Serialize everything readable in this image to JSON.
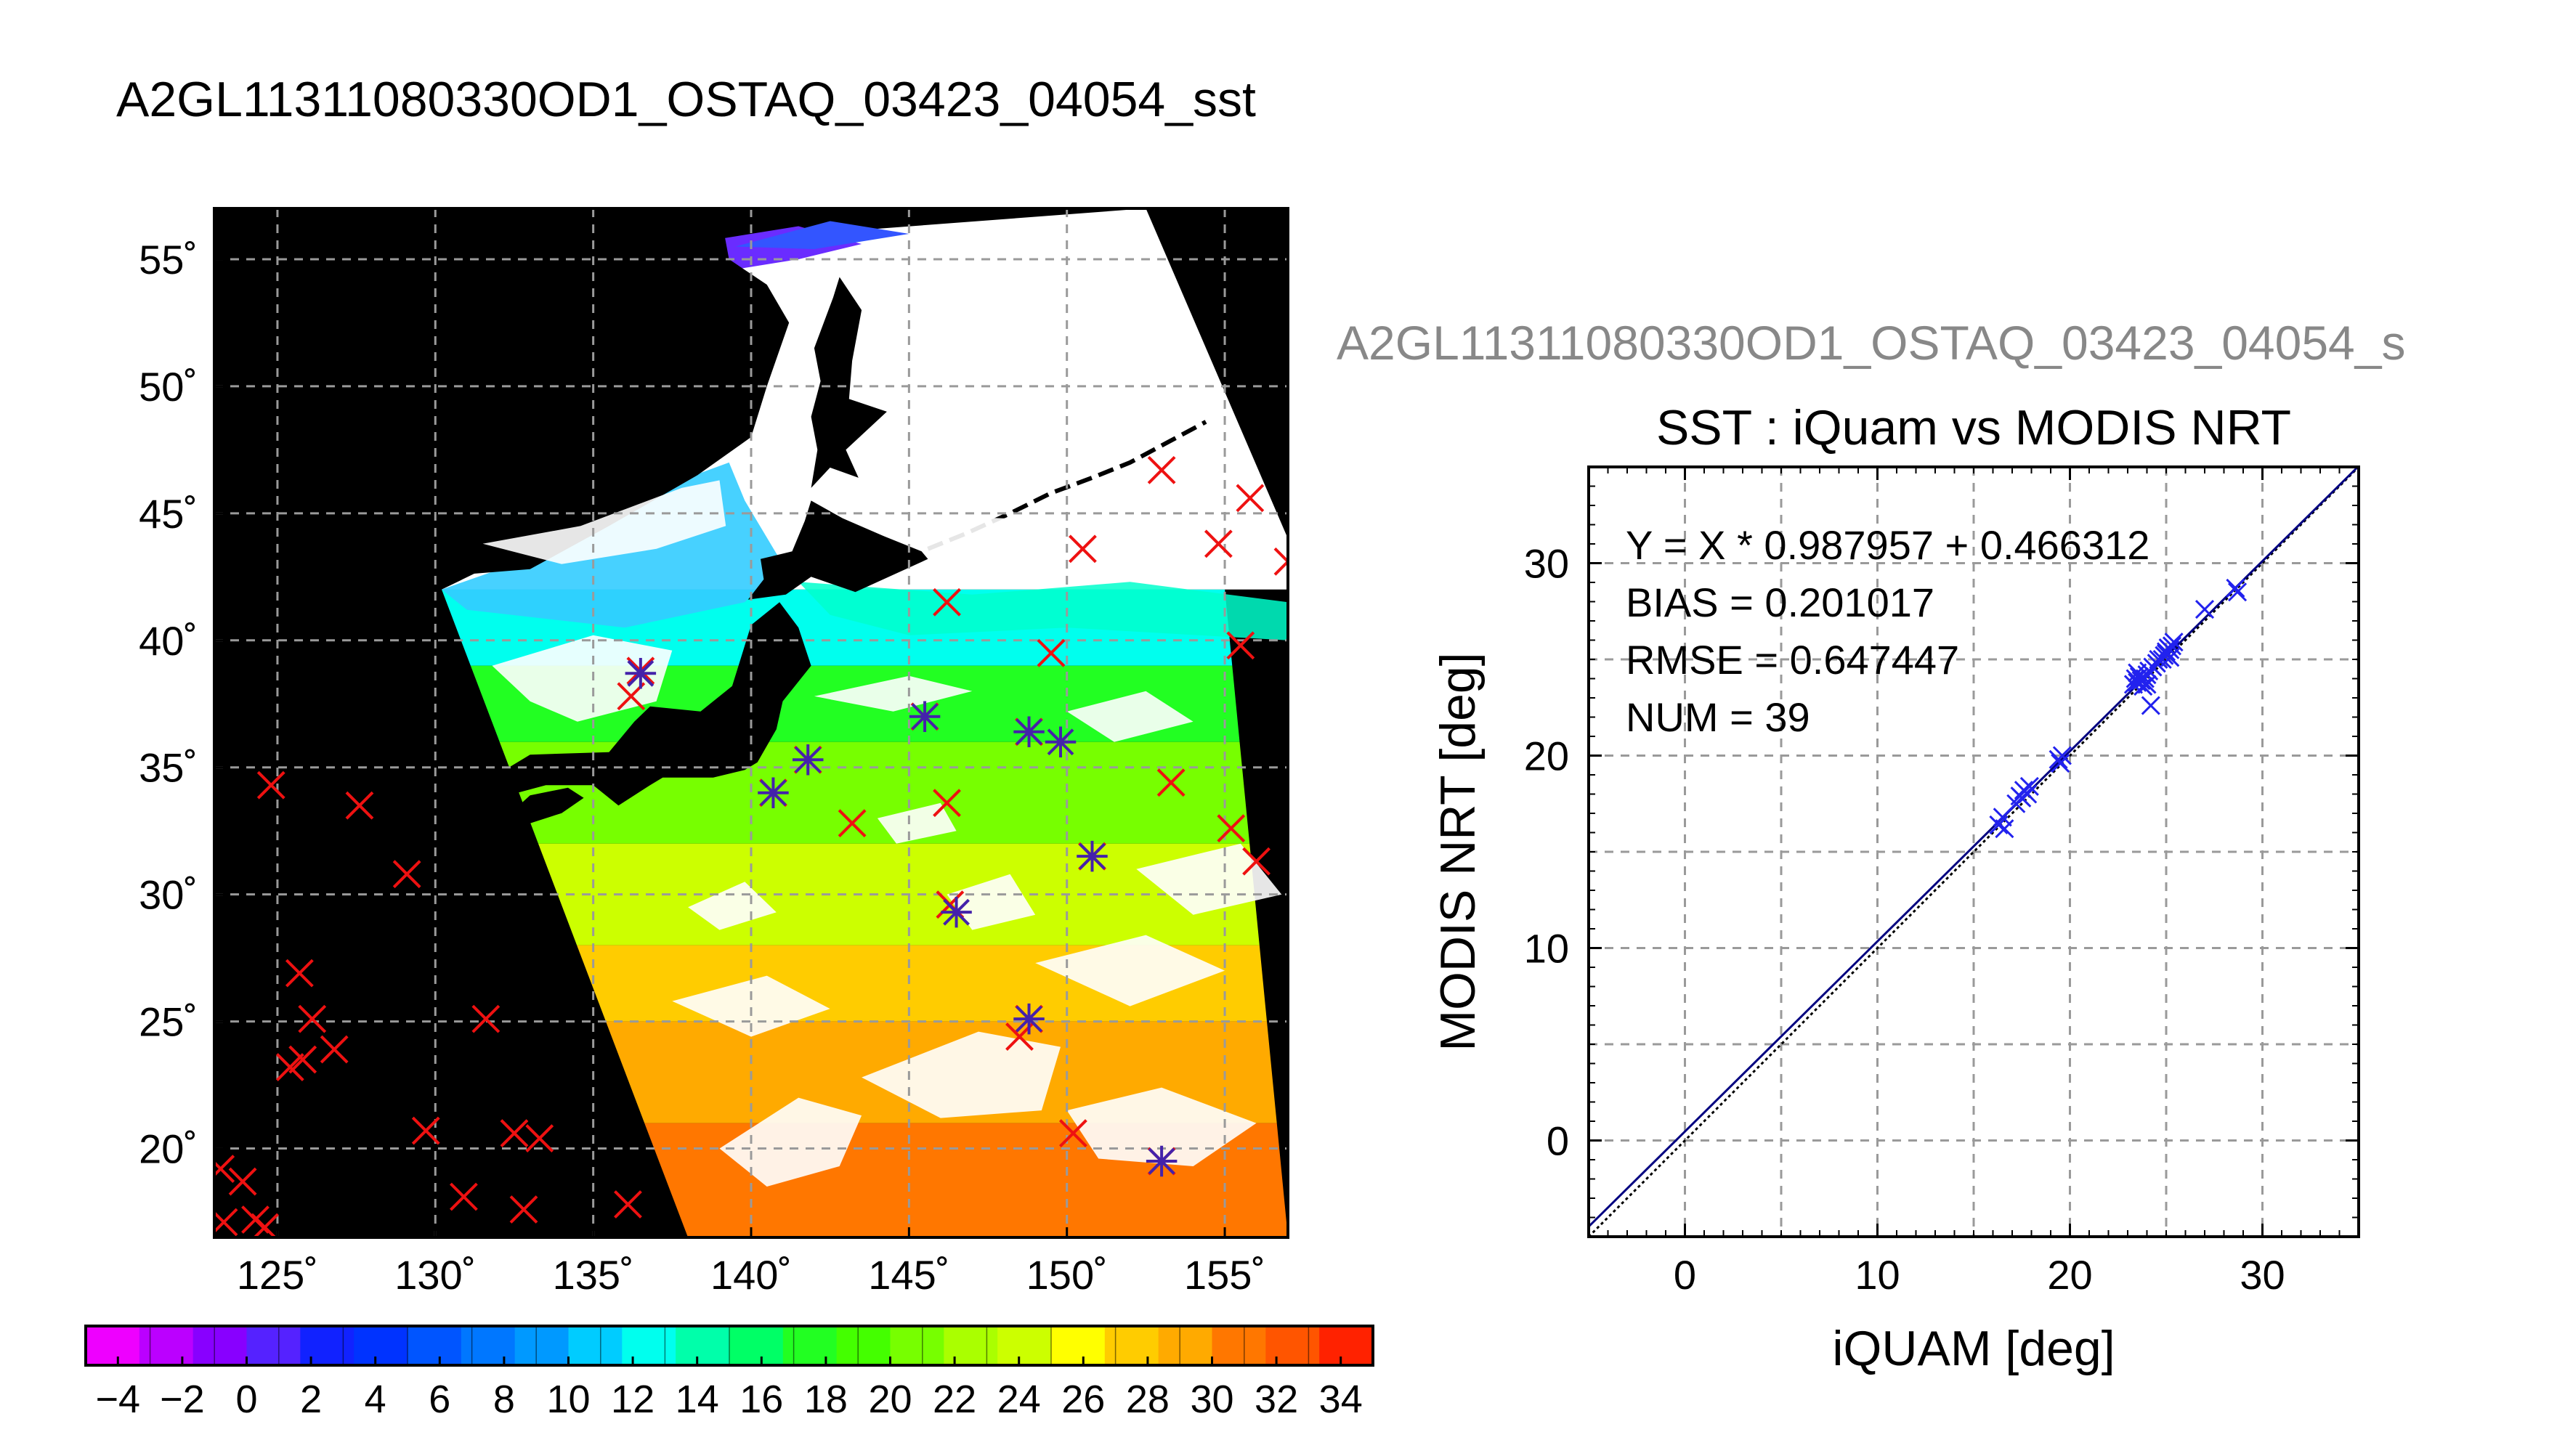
{
  "figure": {
    "main_title": "A2GL11311080330OD1_OSTAQ_03423_04054_sst",
    "scatter_title_clipped": "A2GL11311080330OD1_OSTAQ_03423_04054_s"
  },
  "chart_data": [
    {
      "type": "heatmap",
      "kind": "map",
      "title": "A2GL11311080330OD1_OSTAQ_03423_04054_sst",
      "xlim": [
        123,
        157
      ],
      "ylim": [
        16.5,
        57
      ],
      "x_ticks": [
        125,
        130,
        135,
        140,
        145,
        150,
        155
      ],
      "y_ticks": [
        20,
        25,
        30,
        35,
        40,
        45,
        50,
        55
      ],
      "x_tick_labels": [
        "125˚",
        "130˚",
        "135˚",
        "140˚",
        "145˚",
        "150˚",
        "155˚"
      ],
      "y_tick_labels": [
        "20˚",
        "25˚",
        "30˚",
        "35˚",
        "40˚",
        "45˚",
        "50˚",
        "55˚"
      ],
      "grid": true,
      "background_color": "#000000",
      "cloud_color": "#ffffff",
      "land_color": "#000000",
      "colorbar": {
        "min": -5,
        "max": 35,
        "step": 2,
        "tick_values": [
          -4,
          -2,
          0,
          2,
          4,
          6,
          8,
          10,
          12,
          14,
          16,
          18,
          20,
          22,
          24,
          26,
          28,
          30,
          32,
          34
        ],
        "tick_labels": [
          "−4",
          "−2",
          "0",
          "2",
          "4",
          "6",
          "8",
          "10",
          "12",
          "14",
          "16",
          "18",
          "20",
          "22",
          "24",
          "26",
          "28",
          "30",
          "32",
          "34"
        ],
        "colors": [
          "#ee00ff",
          "#bb00ff",
          "#8800ff",
          "#5522ff",
          "#1122ff",
          "#0033ff",
          "#0055ff",
          "#0077ff",
          "#0099ff",
          "#00ccff",
          "#00ffee",
          "#00ffaa",
          "#00ff66",
          "#22ff22",
          "#44ff00",
          "#77ff00",
          "#aaff00",
          "#ccff00",
          "#ffff00",
          "#ffcc00",
          "#ffaa00",
          "#ff7700",
          "#ff5500",
          "#ff2200"
        ]
      },
      "sst_bands": [
        {
          "lat_top": 42,
          "lat_bottom": 39,
          "sst": 12
        },
        {
          "lat_top": 39,
          "lat_bottom": 36,
          "sst": 17
        },
        {
          "lat_top": 36,
          "lat_bottom": 32,
          "sst": 21
        },
        {
          "lat_top": 32,
          "lat_bottom": 28,
          "sst": 24
        },
        {
          "lat_top": 28,
          "lat_bottom": 25,
          "sst": 27
        },
        {
          "lat_top": 25,
          "lat_bottom": 21,
          "sst": 28.5
        },
        {
          "lat_top": 21,
          "lat_bottom": 16.5,
          "sst": 30
        }
      ],
      "matchup_points": [
        {
          "lon": 136.5,
          "lat": 38.7
        },
        {
          "lon": 141.8,
          "lat": 35.3
        },
        {
          "lon": 145.5,
          "lat": 37.0
        },
        {
          "lon": 148.8,
          "lat": 36.4
        },
        {
          "lon": 149.8,
          "lat": 36.0
        },
        {
          "lon": 146.5,
          "lat": 29.3
        },
        {
          "lon": 150.8,
          "lat": 31.5
        },
        {
          "lon": 148.8,
          "lat": 25.1
        },
        {
          "lon": 153.0,
          "lat": 19.5
        },
        {
          "lon": 140.7,
          "lat": 34.0
        }
      ],
      "iquam_points": [
        {
          "lon": 136.5,
          "lat": 38.8
        },
        {
          "lon": 136.2,
          "lat": 37.8
        },
        {
          "lon": 140.7,
          "lat": 34.0
        },
        {
          "lon": 141.8,
          "lat": 35.3
        },
        {
          "lon": 143.2,
          "lat": 32.8
        },
        {
          "lon": 145.5,
          "lat": 37.0
        },
        {
          "lon": 146.2,
          "lat": 41.5
        },
        {
          "lon": 146.2,
          "lat": 33.6
        },
        {
          "lon": 146.3,
          "lat": 29.6
        },
        {
          "lon": 149.5,
          "lat": 39.5
        },
        {
          "lon": 150.5,
          "lat": 43.6
        },
        {
          "lon": 148.8,
          "lat": 36.4
        },
        {
          "lon": 150.8,
          "lat": 31.5
        },
        {
          "lon": 153.0,
          "lat": 46.7
        },
        {
          "lon": 153.3,
          "lat": 34.4
        },
        {
          "lon": 154.8,
          "lat": 43.8
        },
        {
          "lon": 155.8,
          "lat": 45.6
        },
        {
          "lon": 157.0,
          "lat": 43.1
        },
        {
          "lon": 155.5,
          "lat": 39.8
        },
        {
          "lon": 155.2,
          "lat": 32.6
        },
        {
          "lon": 156.0,
          "lat": 31.3
        },
        {
          "lon": 148.5,
          "lat": 24.4
        },
        {
          "lon": 148.8,
          "lat": 25.1
        },
        {
          "lon": 150.2,
          "lat": 20.6
        },
        {
          "lon": 153.0,
          "lat": 19.5
        },
        {
          "lon": 124.8,
          "lat": 34.3
        },
        {
          "lon": 127.6,
          "lat": 33.5
        },
        {
          "lon": 129.1,
          "lat": 30.8
        },
        {
          "lon": 125.7,
          "lat": 26.9
        },
        {
          "lon": 126.1,
          "lat": 25.1
        },
        {
          "lon": 125.4,
          "lat": 23.2
        },
        {
          "lon": 125.8,
          "lat": 23.5
        },
        {
          "lon": 126.8,
          "lat": 23.9
        },
        {
          "lon": 131.6,
          "lat": 25.1
        },
        {
          "lon": 129.7,
          "lat": 20.7
        },
        {
          "lon": 132.5,
          "lat": 20.6
        },
        {
          "lon": 133.3,
          "lat": 20.4
        },
        {
          "lon": 130.9,
          "lat": 18.1
        },
        {
          "lon": 132.8,
          "lat": 17.6
        },
        {
          "lon": 136.1,
          "lat": 17.8
        },
        {
          "lon": 123.2,
          "lat": 19.2
        },
        {
          "lon": 123.9,
          "lat": 18.7
        },
        {
          "lon": 124.3,
          "lat": 17.2
        },
        {
          "lon": 124.6,
          "lat": 16.9
        },
        {
          "lon": 123.3,
          "lat": 17.1
        }
      ]
    },
    {
      "type": "scatter",
      "title": "SST : iQuam vs MODIS NRT",
      "xlabel": "iQUAM [deg]",
      "ylabel": "MODIS NRT [deg]",
      "xlim": [
        -5,
        35
      ],
      "ylim": [
        -5,
        35
      ],
      "x_ticks": [
        0,
        10,
        20,
        30
      ],
      "y_ticks": [
        0,
        10,
        20,
        30
      ],
      "x_tick_labels": [
        "0",
        "10",
        "20",
        "30"
      ],
      "y_tick_labels": [
        "0",
        "10",
        "20",
        "30"
      ],
      "grid": true,
      "stats": [
        "Y = X * 0.987957 + 0.466312",
        "BIAS = 0.201017",
        "RMSE = 0.647447",
        "NUM = 39"
      ],
      "fit": {
        "slope": 0.987957,
        "intercept": 0.466312
      },
      "points": [
        {
          "x": 16.3,
          "y": 16.4
        },
        {
          "x": 16.6,
          "y": 16.2
        },
        {
          "x": 17.5,
          "y": 17.8
        },
        {
          "x": 17.6,
          "y": 18.2
        },
        {
          "x": 17.4,
          "y": 17.9
        },
        {
          "x": 17.8,
          "y": 18.0
        },
        {
          "x": 19.4,
          "y": 19.8
        },
        {
          "x": 19.6,
          "y": 20.0
        },
        {
          "x": 23.4,
          "y": 24.0
        },
        {
          "x": 23.5,
          "y": 23.8
        },
        {
          "x": 23.6,
          "y": 24.1
        },
        {
          "x": 23.7,
          "y": 23.9
        },
        {
          "x": 23.9,
          "y": 24.0
        },
        {
          "x": 23.8,
          "y": 23.6
        },
        {
          "x": 24.0,
          "y": 24.2
        },
        {
          "x": 24.1,
          "y": 24.4
        },
        {
          "x": 24.3,
          "y": 24.6
        },
        {
          "x": 24.2,
          "y": 22.6
        },
        {
          "x": 24.9,
          "y": 25.2
        },
        {
          "x": 25.0,
          "y": 25.4
        },
        {
          "x": 25.1,
          "y": 25.6
        },
        {
          "x": 25.2,
          "y": 25.5
        },
        {
          "x": 25.3,
          "y": 25.7
        },
        {
          "x": 25.0,
          "y": 25.3
        },
        {
          "x": 24.8,
          "y": 25.0
        },
        {
          "x": 27.0,
          "y": 27.6
        },
        {
          "x": 28.6,
          "y": 28.7
        },
        {
          "x": 28.7,
          "y": 28.5
        },
        {
          "x": 24.5,
          "y": 24.8
        },
        {
          "x": 23.3,
          "y": 23.7
        },
        {
          "x": 17.2,
          "y": 17.5
        },
        {
          "x": 19.5,
          "y": 19.6
        },
        {
          "x": 25.4,
          "y": 25.9
        },
        {
          "x": 23.5,
          "y": 24.3
        },
        {
          "x": 24.6,
          "y": 25.0
        },
        {
          "x": 17.9,
          "y": 18.4
        },
        {
          "x": 16.5,
          "y": 16.8
        },
        {
          "x": 25.2,
          "y": 25.1
        },
        {
          "x": 24.0,
          "y": 23.7
        }
      ],
      "point_color": "#2222ee",
      "line_color": "#000080"
    }
  ]
}
